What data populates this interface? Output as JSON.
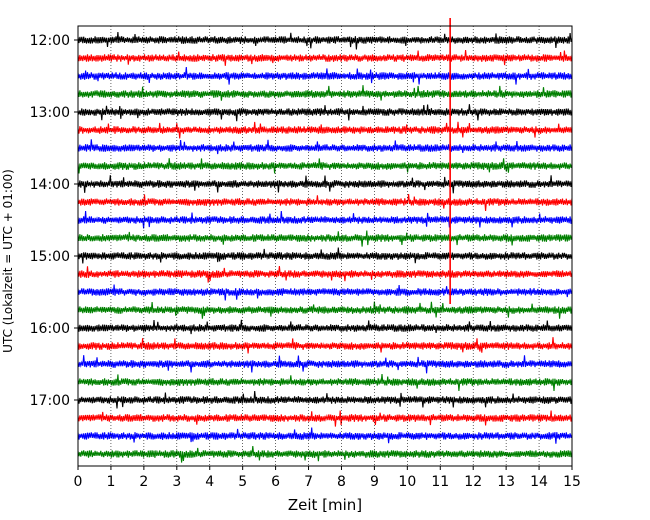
{
  "chart_data": {
    "type": "line",
    "title": "",
    "xlabel": "Zeit  [min]",
    "ylabel": "UTC (Lokalzeit = UTC + 01:00)",
    "xlim": [
      0,
      15
    ],
    "x_ticks": [
      "0",
      "1",
      "2",
      "3",
      "4",
      "5",
      "6",
      "7",
      "8",
      "9",
      "10",
      "11",
      "12",
      "13",
      "14",
      "15"
    ],
    "y_ticks": [
      "12:00",
      "13:00",
      "14:00",
      "15:00",
      "16:00",
      "17:00"
    ],
    "grid": "vertical dotted",
    "row_interval_min": 15,
    "rows": [
      {
        "start": "12:00",
        "color": "#000000"
      },
      {
        "start": "12:15",
        "color": "#ff0000"
      },
      {
        "start": "12:30",
        "color": "#0000ff"
      },
      {
        "start": "12:45",
        "color": "#008000"
      },
      {
        "start": "13:00",
        "color": "#000000"
      },
      {
        "start": "13:15",
        "color": "#ff0000"
      },
      {
        "start": "13:30",
        "color": "#0000ff"
      },
      {
        "start": "13:45",
        "color": "#008000"
      },
      {
        "start": "14:00",
        "color": "#000000"
      },
      {
        "start": "14:15",
        "color": "#ff0000"
      },
      {
        "start": "14:30",
        "color": "#0000ff"
      },
      {
        "start": "14:45",
        "color": "#008000"
      },
      {
        "start": "15:00",
        "color": "#000000"
      },
      {
        "start": "15:15",
        "color": "#ff0000"
      },
      {
        "start": "15:30",
        "color": "#0000ff"
      },
      {
        "start": "15:45",
        "color": "#008000"
      },
      {
        "start": "16:00",
        "color": "#000000"
      },
      {
        "start": "16:15",
        "color": "#ff0000"
      },
      {
        "start": "16:30",
        "color": "#0000ff"
      },
      {
        "start": "16:45",
        "color": "#008000"
      },
      {
        "start": "17:00",
        "color": "#000000"
      },
      {
        "start": "17:15",
        "color": "#ff0000"
      },
      {
        "start": "17:30",
        "color": "#0000ff"
      },
      {
        "start": "17:45",
        "color": "#008000"
      }
    ],
    "event_marker": {
      "x_min": 11.3,
      "from": "11:45",
      "to": "15:40",
      "color": "#ff0000"
    }
  }
}
